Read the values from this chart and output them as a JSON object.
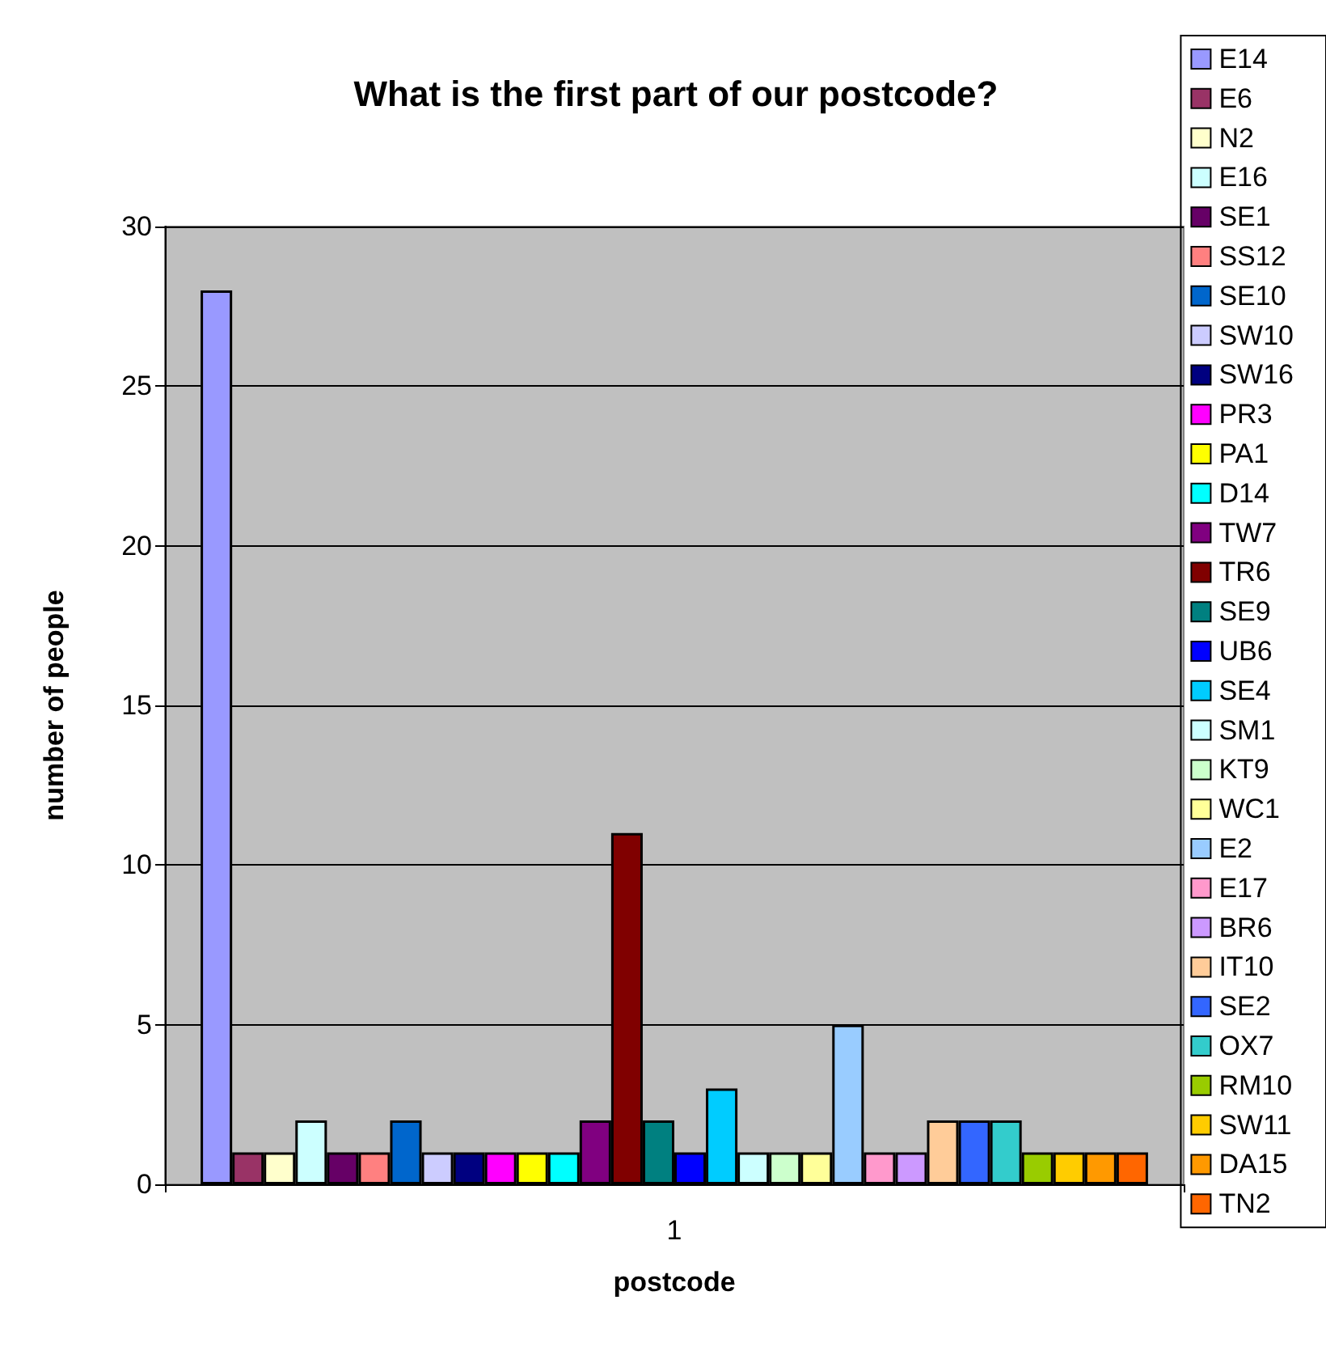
{
  "chart_data": {
    "type": "bar",
    "title": "What is the first part of our postcode?",
    "xlabel": "postcode",
    "ylabel": "number of people",
    "categories": [
      "1"
    ],
    "series": [
      {
        "name": "E14",
        "color": "#9999ff",
        "values": [
          28
        ]
      },
      {
        "name": "E6",
        "color": "#993366",
        "values": [
          1
        ]
      },
      {
        "name": "N2",
        "color": "#ffffcc",
        "values": [
          1
        ]
      },
      {
        "name": "E16",
        "color": "#ccffff",
        "values": [
          2
        ]
      },
      {
        "name": "SE1",
        "color": "#660066",
        "values": [
          1
        ]
      },
      {
        "name": "SS12",
        "color": "#ff8080",
        "values": [
          1
        ]
      },
      {
        "name": "SE10",
        "color": "#0066cc",
        "values": [
          2
        ]
      },
      {
        "name": "SW10",
        "color": "#ccccff",
        "values": [
          1
        ]
      },
      {
        "name": "SW16",
        "color": "#000080",
        "values": [
          1
        ]
      },
      {
        "name": "PR3",
        "color": "#ff00ff",
        "values": [
          1
        ]
      },
      {
        "name": "PA1",
        "color": "#ffff00",
        "values": [
          1
        ]
      },
      {
        "name": "D14",
        "color": "#00ffff",
        "values": [
          1
        ]
      },
      {
        "name": "TW7",
        "color": "#800080",
        "values": [
          2
        ]
      },
      {
        "name": "TR6",
        "color": "#800000",
        "values": [
          11
        ]
      },
      {
        "name": "SE9",
        "color": "#008080",
        "values": [
          2
        ]
      },
      {
        "name": "UB6",
        "color": "#0000ff",
        "values": [
          1
        ]
      },
      {
        "name": "SE4",
        "color": "#00ccff",
        "values": [
          3
        ]
      },
      {
        "name": "SM1",
        "color": "#ccffff",
        "values": [
          1
        ]
      },
      {
        "name": "KT9",
        "color": "#ccffcc",
        "values": [
          1
        ]
      },
      {
        "name": "WC1",
        "color": "#ffff99",
        "values": [
          1
        ]
      },
      {
        "name": "E2",
        "color": "#99ccff",
        "values": [
          5
        ]
      },
      {
        "name": "E17",
        "color": "#ff99cc",
        "values": [
          1
        ]
      },
      {
        "name": "BR6",
        "color": "#cc99ff",
        "values": [
          1
        ]
      },
      {
        "name": "IT10",
        "color": "#ffcc99",
        "values": [
          2
        ]
      },
      {
        "name": "SE2",
        "color": "#3366ff",
        "values": [
          2
        ]
      },
      {
        "name": "OX7",
        "color": "#33cccc",
        "values": [
          2
        ]
      },
      {
        "name": "RM10",
        "color": "#99cc00",
        "values": [
          1
        ]
      },
      {
        "name": "SW11",
        "color": "#ffcc00",
        "values": [
          1
        ]
      },
      {
        "name": "DA15",
        "color": "#ff9900",
        "values": [
          1
        ]
      },
      {
        "name": "TN2",
        "color": "#ff6600",
        "values": [
          1
        ]
      }
    ],
    "ylim": [
      0,
      30
    ],
    "yticks": [
      0,
      5,
      10,
      15,
      20,
      25,
      30
    ],
    "grid": "y",
    "legend": "right"
  }
}
